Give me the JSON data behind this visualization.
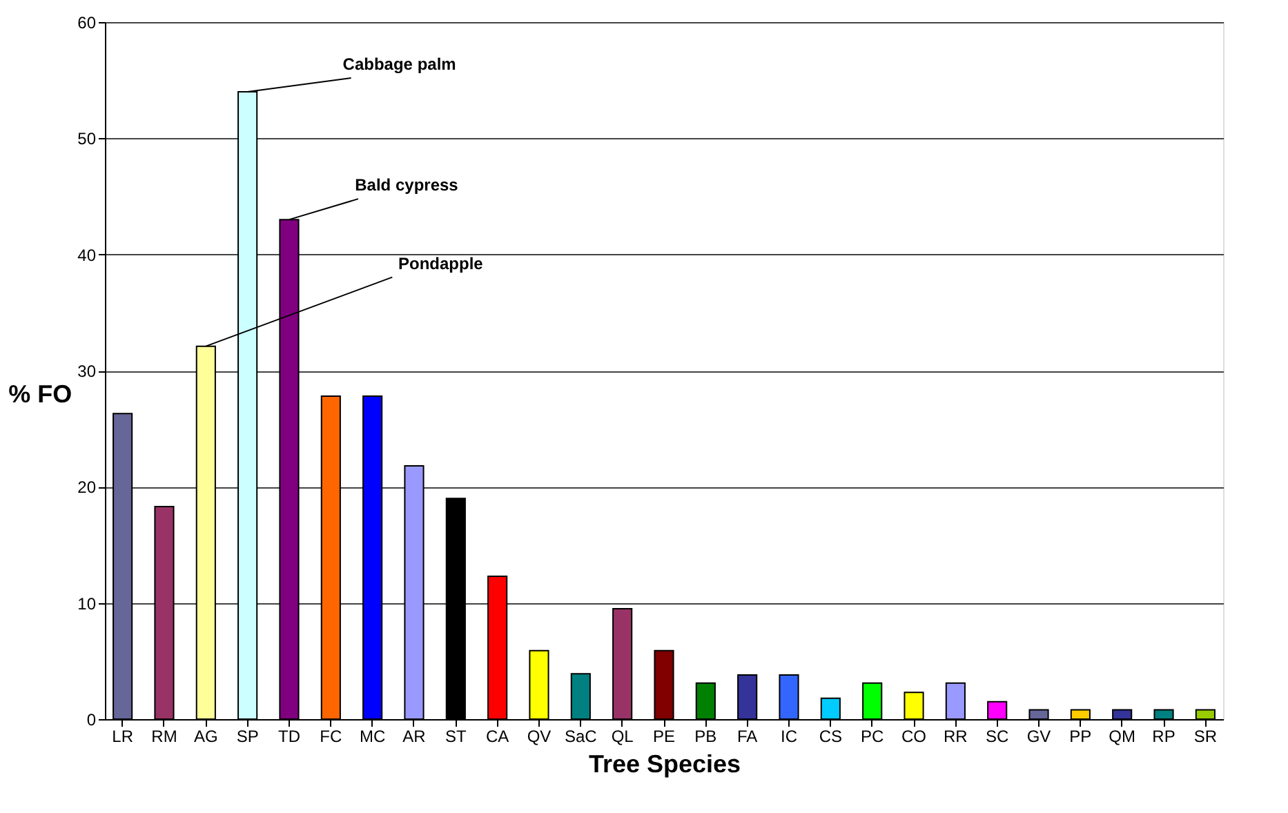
{
  "chart_data": {
    "type": "bar",
    "xlabel": "Tree Species",
    "ylabel": "% FO",
    "categories": [
      "LR",
      "RM",
      "AG",
      "SP",
      "TD",
      "FC",
      "MC",
      "AR",
      "ST",
      "CA",
      "QV",
      "SaC",
      "QL",
      "PE",
      "PB",
      "FA",
      "IC",
      "CS",
      "PC",
      "CO",
      "RR",
      "SC",
      "GV",
      "PP",
      "QM",
      "RP",
      "SR"
    ],
    "values": [
      26.3,
      18.3,
      32.1,
      54,
      43,
      27.8,
      27.8,
      21.8,
      19,
      12.3,
      5.9,
      3.9,
      9.5,
      5.9,
      3.1,
      3.8,
      3.8,
      1.8,
      3.1,
      2.3,
      3.1,
      1.5,
      0.8,
      0.8,
      0.8,
      0.8,
      0.8
    ],
    "colors": [
      "#666699",
      "#993366",
      "#ffff99",
      "#ccffff",
      "#800080",
      "#ff6600",
      "#0000ff",
      "#9999ff",
      "#000000",
      "#ff0000",
      "#ffff00",
      "#008080",
      "#993366",
      "#800000",
      "#008000",
      "#333399",
      "#3366ff",
      "#00ccff",
      "#00ff00",
      "#ffff00",
      "#9999ff",
      "#ff00ff",
      "#666699",
      "#ffcc00",
      "#333399",
      "#008080",
      "#99cc00"
    ],
    "ylim": [
      0,
      60
    ],
    "yticks": [
      0,
      10,
      20,
      30,
      40,
      50,
      60
    ],
    "grid": "y",
    "legend": false,
    "annotations": [
      {
        "text": "Cabbage palm",
        "x": "SP",
        "y": 54
      },
      {
        "text": "Bald cypress",
        "x": "TD",
        "y": 43
      },
      {
        "text": "Pondapple",
        "x": "AG",
        "y": 32.1
      }
    ]
  }
}
